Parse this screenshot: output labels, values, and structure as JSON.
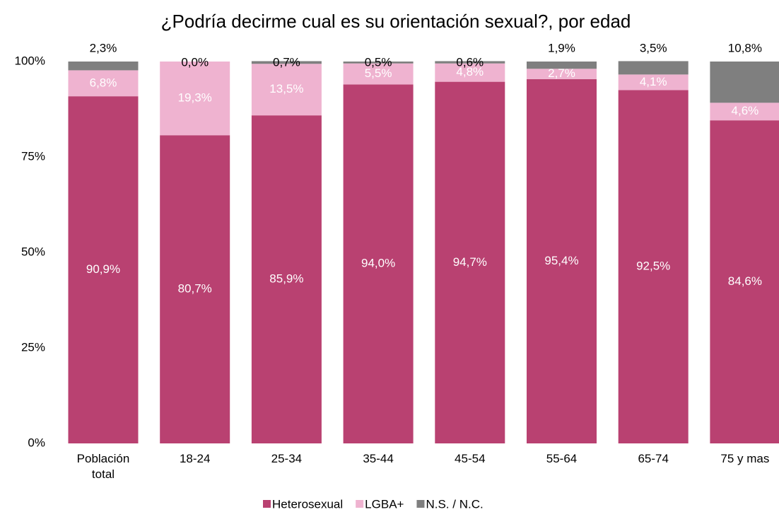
{
  "chart_data": {
    "type": "stacked_bar",
    "title": "¿Podría decirme cual es su orientación sexual?, por edad",
    "categories": [
      "Población total",
      "18-24",
      "25-34",
      "35-44",
      "45-54",
      "55-64",
      "65-74",
      "75 y mas"
    ],
    "series": [
      {
        "name": "Heterosexual",
        "color": "#b94171",
        "values": [
          90.9,
          80.7,
          85.9,
          94.0,
          94.7,
          95.4,
          92.5,
          84.6
        ],
        "value_labels": [
          "90,9%",
          "80,7%",
          "85,9%",
          "94,0%",
          "94,7%",
          "95,4%",
          "92,5%",
          "84,6%"
        ]
      },
      {
        "name": "LGBA+",
        "color": "#efb3d0",
        "values": [
          6.8,
          19.3,
          13.5,
          5.5,
          4.8,
          2.7,
          4.1,
          4.6
        ],
        "value_labels": [
          "6,8%",
          "19,3%",
          "13,5%",
          "5,5%",
          "4,8%",
          "2,7%",
          "4,1%",
          "4,6%"
        ]
      },
      {
        "name": "N.S. / N.C.",
        "color": "#7f7f7f",
        "values": [
          2.3,
          0.0,
          0.7,
          0.5,
          0.6,
          1.9,
          3.5,
          10.8
        ],
        "value_labels": [
          "2,3%",
          "0,0%",
          "0,7%",
          "0,5%",
          "0,6%",
          "1,9%",
          "3,5%",
          "10,8%"
        ]
      }
    ],
    "ylim": [
      0,
      100
    ],
    "yticks": [
      {
        "value": 0,
        "label": "0%"
      },
      {
        "value": 25,
        "label": "25%"
      },
      {
        "value": 50,
        "label": "50%"
      },
      {
        "value": 75,
        "label": "75%"
      },
      {
        "value": 100,
        "label": "100%"
      }
    ],
    "grid": false,
    "legend": "bottom"
  }
}
